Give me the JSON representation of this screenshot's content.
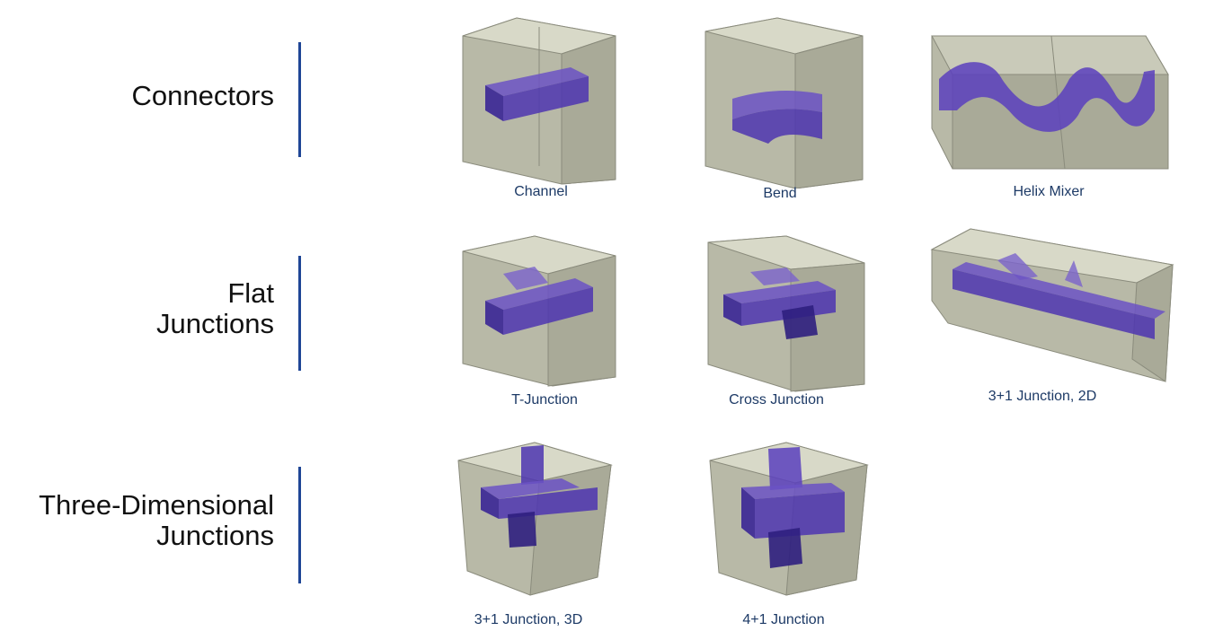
{
  "colors": {
    "accent": "#1f4696",
    "caption": "#1d3a66",
    "box": "#c8c9b8",
    "channel": "#4b2fa8"
  },
  "sections": [
    {
      "title": "Connectors"
    },
    {
      "title": "Flat\nJunctions"
    },
    {
      "title": "Three-Dimensional\nJunctions"
    }
  ],
  "items": [
    {
      "label": "Channel"
    },
    {
      "label": "Bend"
    },
    {
      "label": "Helix Mixer"
    },
    {
      "label": "T-Junction"
    },
    {
      "label": "Cross Junction"
    },
    {
      "label": "3+1 Junction, 2D"
    },
    {
      "label": "3+1 Junction, 3D"
    },
    {
      "label": "4+1 Junction"
    }
  ]
}
